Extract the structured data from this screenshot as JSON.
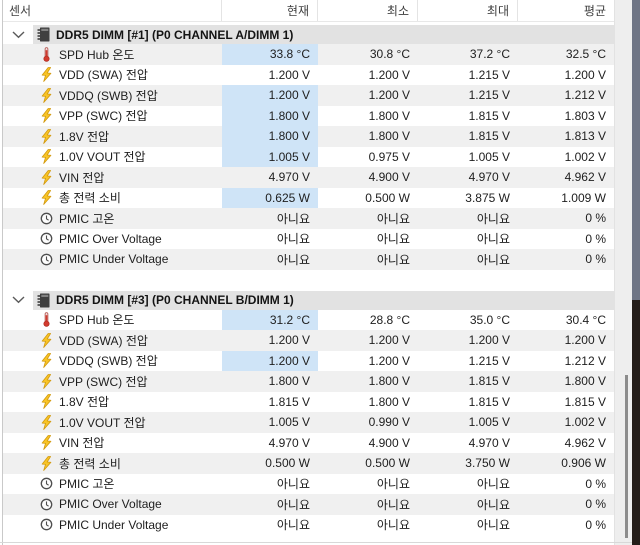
{
  "table": {
    "columns": [
      {
        "id": "sensor",
        "label": "센서"
      },
      {
        "id": "current",
        "label": "현재"
      },
      {
        "id": "minimum",
        "label": "최소"
      },
      {
        "id": "maximum",
        "label": "최대"
      },
      {
        "id": "average",
        "label": "평균"
      }
    ],
    "sections": [
      {
        "title": "DDR5 DIMM [#1] (P0 CHANNEL A/DIMM 1)",
        "icon": "memory-chip-icon",
        "expanded": true,
        "rows": [
          {
            "label": "SPD Hub 온도",
            "icon": "thermometer-icon",
            "current": "33.8 °C",
            "min": "30.8 °C",
            "max": "37.2 °C",
            "avg": "32.5 °C",
            "highlight_current": true
          },
          {
            "label": "VDD (SWA) 전압",
            "icon": "voltage-icon",
            "current": "1.200 V",
            "min": "1.200 V",
            "max": "1.215 V",
            "avg": "1.200 V",
            "highlight_current": false
          },
          {
            "label": "VDDQ (SWB) 전압",
            "icon": "voltage-icon",
            "current": "1.200 V",
            "min": "1.200 V",
            "max": "1.215 V",
            "avg": "1.212 V",
            "highlight_current": true
          },
          {
            "label": "VPP (SWC) 전압",
            "icon": "voltage-icon",
            "current": "1.800 V",
            "min": "1.800 V",
            "max": "1.815 V",
            "avg": "1.803 V",
            "highlight_current": true
          },
          {
            "label": "1.8V 전압",
            "icon": "voltage-icon",
            "current": "1.800 V",
            "min": "1.800 V",
            "max": "1.815 V",
            "avg": "1.813 V",
            "highlight_current": true
          },
          {
            "label": "1.0V VOUT 전압",
            "icon": "voltage-icon",
            "current": "1.005 V",
            "min": "0.975 V",
            "max": "1.005 V",
            "avg": "1.002 V",
            "highlight_current": true
          },
          {
            "label": "VIN 전압",
            "icon": "voltage-icon",
            "current": "4.970 V",
            "min": "4.900 V",
            "max": "4.970 V",
            "avg": "4.962 V",
            "highlight_current": false
          },
          {
            "label": "총 전력 소비",
            "icon": "voltage-icon",
            "current": "0.625 W",
            "min": "0.500 W",
            "max": "3.875 W",
            "avg": "1.009 W",
            "highlight_current": true
          },
          {
            "label": "PMIC 고온",
            "icon": "clock-icon",
            "current": "아니요",
            "min": "아니요",
            "max": "아니요",
            "avg": "0 %",
            "highlight_current": false
          },
          {
            "label": "PMIC Over Voltage",
            "icon": "clock-icon",
            "current": "아니요",
            "min": "아니요",
            "max": "아니요",
            "avg": "0 %",
            "highlight_current": false
          },
          {
            "label": "PMIC Under Voltage",
            "icon": "clock-icon",
            "current": "아니요",
            "min": "아니요",
            "max": "아니요",
            "avg": "0 %",
            "highlight_current": false
          }
        ]
      },
      {
        "title": "DDR5 DIMM [#3] (P0 CHANNEL B/DIMM 1)",
        "icon": "memory-chip-icon",
        "expanded": true,
        "rows": [
          {
            "label": "SPD Hub 온도",
            "icon": "thermometer-icon",
            "current": "31.2 °C",
            "min": "28.8 °C",
            "max": "35.0 °C",
            "avg": "30.4 °C",
            "highlight_current": true
          },
          {
            "label": "VDD (SWA) 전압",
            "icon": "voltage-icon",
            "current": "1.200 V",
            "min": "1.200 V",
            "max": "1.200 V",
            "avg": "1.200 V",
            "highlight_current": false
          },
          {
            "label": "VDDQ (SWB) 전압",
            "icon": "voltage-icon",
            "current": "1.200 V",
            "min": "1.200 V",
            "max": "1.215 V",
            "avg": "1.212 V",
            "highlight_current": true
          },
          {
            "label": "VPP (SWC) 전압",
            "icon": "voltage-icon",
            "current": "1.800 V",
            "min": "1.800 V",
            "max": "1.815 V",
            "avg": "1.800 V",
            "highlight_current": false
          },
          {
            "label": "1.8V 전압",
            "icon": "voltage-icon",
            "current": "1.815 V",
            "min": "1.800 V",
            "max": "1.815 V",
            "avg": "1.815 V",
            "highlight_current": false
          },
          {
            "label": "1.0V VOUT 전압",
            "icon": "voltage-icon",
            "current": "1.005 V",
            "min": "0.990 V",
            "max": "1.005 V",
            "avg": "1.002 V",
            "highlight_current": false
          },
          {
            "label": "VIN 전압",
            "icon": "voltage-icon",
            "current": "4.970 V",
            "min": "4.900 V",
            "max": "4.970 V",
            "avg": "4.962 V",
            "highlight_current": false
          },
          {
            "label": "총 전력 소비",
            "icon": "voltage-icon",
            "current": "0.500 W",
            "min": "0.500 W",
            "max": "3.750 W",
            "avg": "0.906 W",
            "highlight_current": false
          },
          {
            "label": "PMIC 고온",
            "icon": "clock-icon",
            "current": "아니요",
            "min": "아니요",
            "max": "아니요",
            "avg": "0 %",
            "highlight_current": false
          },
          {
            "label": "PMIC Over Voltage",
            "icon": "clock-icon",
            "current": "아니요",
            "min": "아니요",
            "max": "아니요",
            "avg": "0 %",
            "highlight_current": false
          },
          {
            "label": "PMIC Under Voltage",
            "icon": "clock-icon",
            "current": "아니요",
            "min": "아니요",
            "max": "아니요",
            "avg": "0 %",
            "highlight_current": false
          }
        ]
      }
    ]
  },
  "colors": {
    "current_highlight": "#cfe4f7",
    "row_stripe": "#f0f0f0",
    "section_header_bg": "#e2e2e2",
    "scrollbar_track": "#eeeeee",
    "scrollbar_thumb": "#8c8c8c",
    "window_border": "#6f7585",
    "backdrop_dark": "#241d19",
    "bolt_icon": "#f8c426",
    "thermometer_icon": "#d23b2f"
  }
}
